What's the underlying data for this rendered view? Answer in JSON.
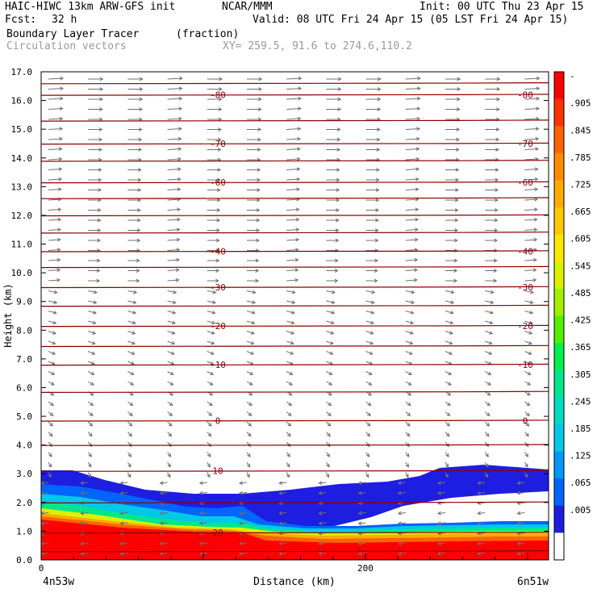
{
  "header": {
    "model": "HAIC-HIWC 13km ARW-GFS init",
    "org": "NCAR/MMM",
    "init": "Init: 00 UTC Thu 23 Apr 15",
    "fcst_label": "Fcst:",
    "fcst_value": "32 h",
    "valid": "Valid: 08 UTC Fri 24 Apr 15 (05 LST Fri 24 Apr 15)",
    "field": "Boundary Layer Tracer",
    "units": "(fraction)",
    "vectors": "Circulation vectors",
    "xy": "XY= 259.5, 91.6 to 274.6,110.2"
  },
  "chart_data": {
    "type": "heatmap",
    "title": "Boundary Layer Tracer",
    "ylabel": "Height (km)",
    "xlabel": "Distance (km)",
    "xlim": [
      0,
      313
    ],
    "ylim": [
      0,
      17
    ],
    "yticks": [
      "0.0",
      "1.0",
      "2.0",
      "3.0",
      "4.0",
      "5.0",
      "6.0",
      "7.0",
      "8.0",
      "9.0",
      "10.0",
      "11.0",
      "12.0",
      "13.0",
      "14.0",
      "15.0",
      "16.0",
      "17.0"
    ],
    "xticks": [
      {
        "value": 0,
        "label": "0"
      },
      {
        "value": 200,
        "label": "200"
      }
    ],
    "x_end_labels": {
      "left": "4n53w",
      "right": "6n51w"
    },
    "colorbar": {
      "colors": [
        "#ffffff",
        "#1e1ee0",
        "#0064ff",
        "#0096ff",
        "#00c8e6",
        "#00dcbe",
        "#00e68c",
        "#00f050",
        "#50f000",
        "#a0f000",
        "#dcf000",
        "#ffe600",
        "#ffc800",
        "#ffaa00",
        "#ff8c00",
        "#ff6400",
        "#ff3200",
        "#ff0000"
      ],
      "labels": [
        "-",
        ".905",
        ".845",
        ".785",
        ".725",
        ".665",
        ".605",
        ".545",
        ".485",
        ".425",
        ".365",
        ".305",
        ".245",
        ".185",
        ".125",
        ".065",
        ".005"
      ]
    },
    "isotherms": [
      {
        "label": "-80",
        "y": 16.2
      },
      {
        "label": "-70",
        "y": 14.5
      },
      {
        "label": "-60",
        "y": 13.15
      },
      {
        "label": "-40",
        "y": 10.75
      },
      {
        "label": "-30",
        "y": 9.5
      },
      {
        "label": "-20",
        "y": 8.15
      },
      {
        "label": "-10",
        "y": 6.8
      },
      {
        "label": "0",
        "y": 4.85
      },
      {
        "label": "10",
        "y": 3.1
      },
      {
        "label": "20",
        "y": 0.95
      }
    ],
    "unlabeled_isotherms": [
      16.6,
      15.3,
      13.9,
      12.6,
      12.0,
      11.4,
      10.2,
      8.85,
      7.45,
      5.85,
      4.0,
      2.0,
      0.3
    ]
  }
}
